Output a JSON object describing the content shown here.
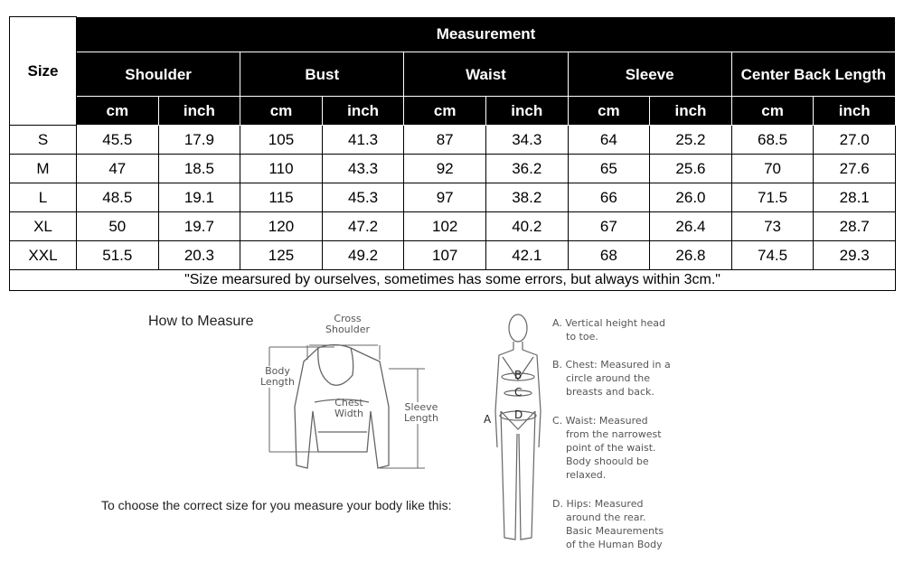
{
  "table": {
    "measurement_label": "Measurement",
    "size_label": "Size",
    "groups": [
      "Shoulder",
      "Bust",
      "Waist",
      "Sleeve",
      "Center Back Length"
    ],
    "units": [
      "cm",
      "inch"
    ],
    "rows": [
      {
        "size": "S",
        "values": [
          "45.5",
          "17.9",
          "105",
          "41.3",
          "87",
          "34.3",
          "64",
          "25.2",
          "68.5",
          "27.0"
        ]
      },
      {
        "size": "M",
        "values": [
          "47",
          "18.5",
          "110",
          "43.3",
          "92",
          "36.2",
          "65",
          "25.6",
          "70",
          "27.6"
        ]
      },
      {
        "size": "L",
        "values": [
          "48.5",
          "19.1",
          "115",
          "45.3",
          "97",
          "38.2",
          "66",
          "26.0",
          "71.5",
          "28.1"
        ]
      },
      {
        "size": "XL",
        "values": [
          "50",
          "19.7",
          "120",
          "47.2",
          "102",
          "40.2",
          "67",
          "26.4",
          "73",
          "28.7"
        ]
      },
      {
        "size": "XXL",
        "values": [
          "51.5",
          "20.3",
          "125",
          "49.2",
          "107",
          "42.1",
          "68",
          "26.8",
          "74.5",
          "29.3"
        ]
      }
    ],
    "note": "\"Size mearsured by ourselves, sometimes has some errors, but always within 3cm.\""
  },
  "how_to": {
    "title": "How to Measure",
    "instruction": "To choose the correct size for you measure your body like this:",
    "sweater_labels": {
      "cross_shoulder": [
        "Cross",
        "Shoulder"
      ],
      "body_length": [
        "Body",
        "Length"
      ],
      "chest_width": [
        "Chest",
        "Width"
      ],
      "sleeve_length": [
        "Sleeve",
        "Length"
      ]
    },
    "body_markers": [
      "A",
      "B",
      "C",
      "D"
    ],
    "descriptions": [
      [
        "A. Vertical height head",
        "to toe."
      ],
      [
        "B. Chest: Measured in a",
        "circle around the",
        "breasts and back."
      ],
      [
        "C. Waist: Measured",
        "from the narrowest",
        "point of the waist.",
        "Body shoould be",
        "relaxed."
      ],
      [
        "D. Hips: Measured",
        "around the rear.",
        "Basic Meaurements",
        "of the Human Body"
      ]
    ]
  }
}
